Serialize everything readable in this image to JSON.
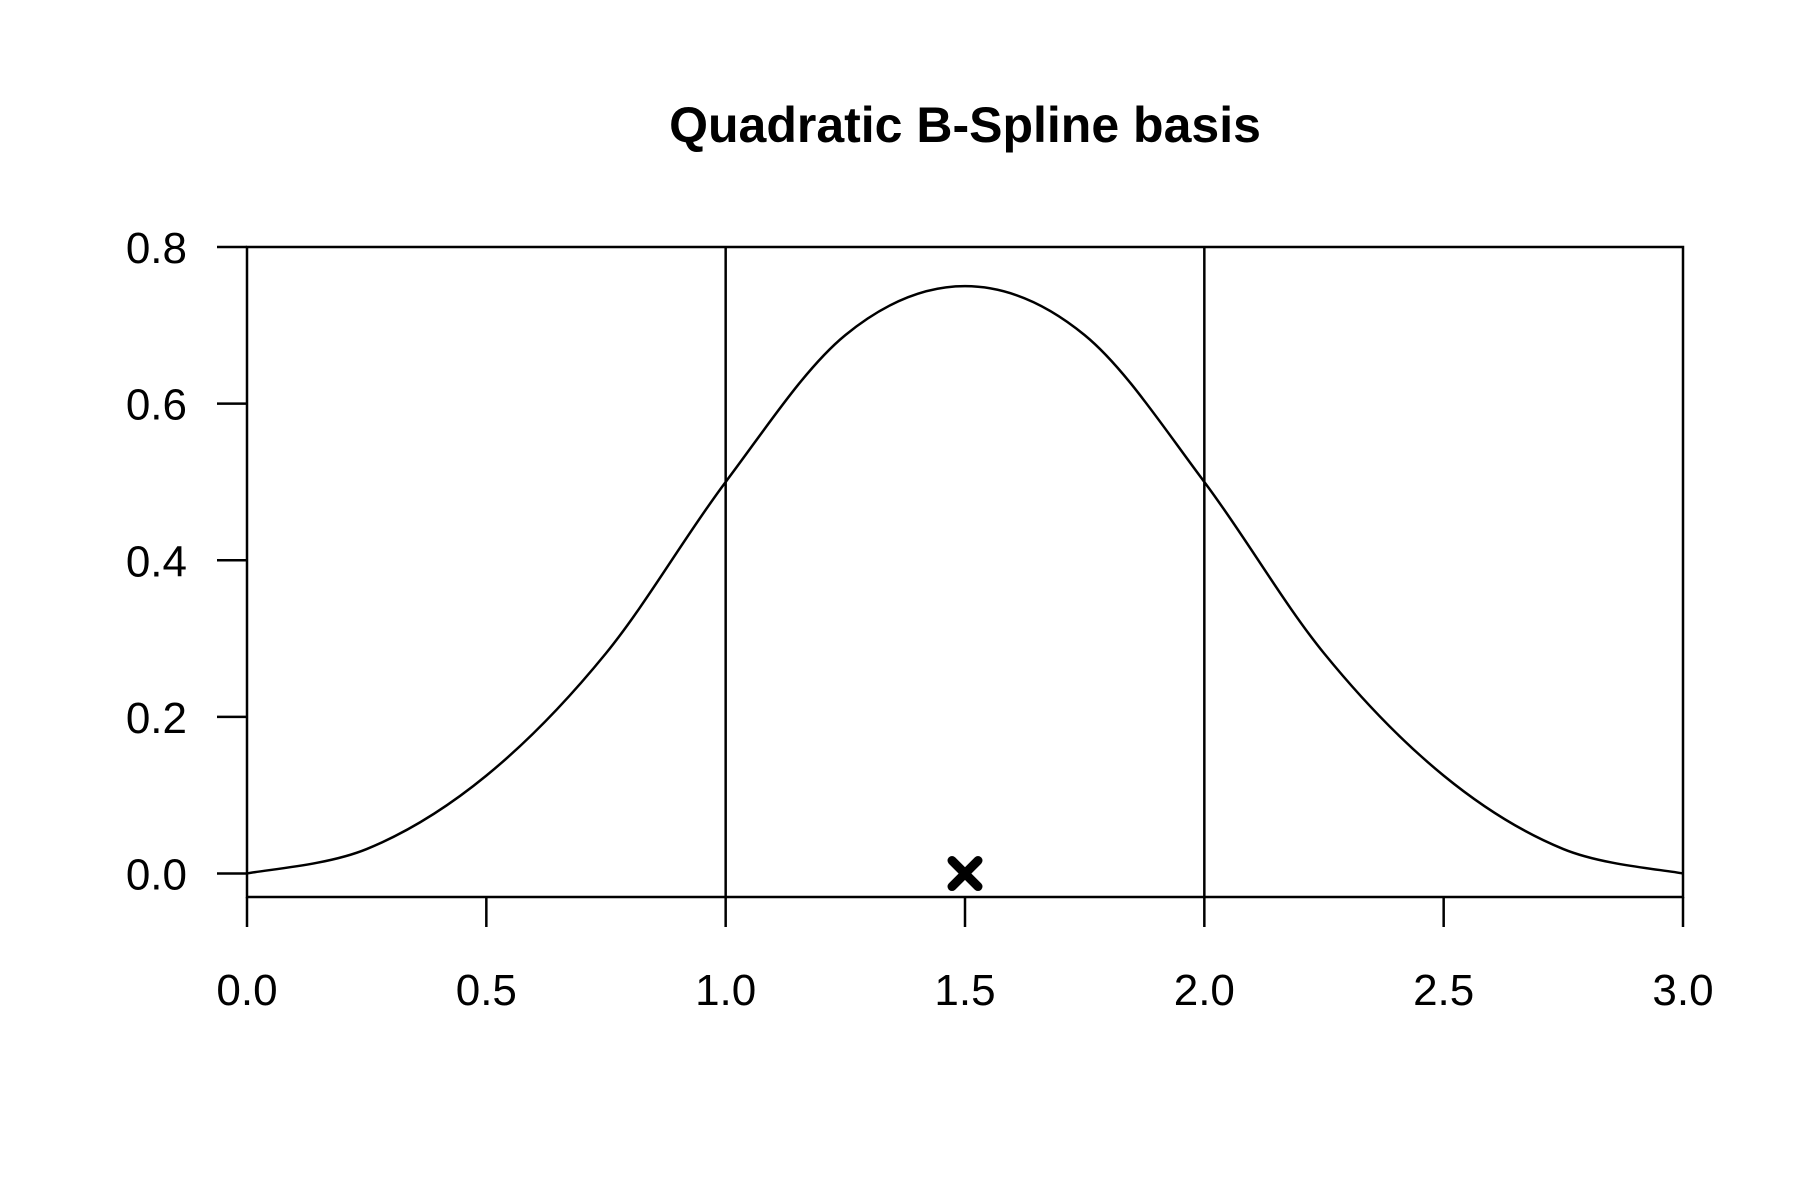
{
  "chart_data": {
    "type": "line",
    "title": "Quadratic B-Spline basis",
    "xlabel": "",
    "ylabel": "",
    "xlim": [
      0,
      3
    ],
    "ylim": [
      -0.03,
      0.8
    ],
    "x_ticks": [
      0.0,
      0.5,
      1.0,
      1.5,
      2.0,
      2.5,
      3.0
    ],
    "x_tick_labels": [
      "0.0",
      "0.5",
      "1.0",
      "1.5",
      "2.0",
      "2.5",
      "3.0"
    ],
    "y_ticks": [
      0.0,
      0.2,
      0.4,
      0.6,
      0.8
    ],
    "y_tick_labels": [
      "0.0",
      "0.2",
      "0.4",
      "0.6",
      "0.8"
    ],
    "knot_lines_x": [
      1.0,
      2.0
    ],
    "series": [
      {
        "x": [
          0,
          0.25,
          0.5,
          0.75,
          1.0,
          1.25,
          1.5,
          1.75,
          2.0,
          2.25,
          2.5,
          2.75,
          3.0
        ],
        "y": [
          0,
          0.03125,
          0.125,
          0.28125,
          0.5,
          0.6875,
          0.75,
          0.6875,
          0.5,
          0.28125,
          0.125,
          0.03125,
          0
        ],
        "color": "#000000"
      }
    ],
    "markers": [
      {
        "x": 1.5,
        "y": 0.0,
        "symbol": "x-icon",
        "color": "#000000"
      }
    ],
    "grid": false,
    "legend": "none"
  }
}
